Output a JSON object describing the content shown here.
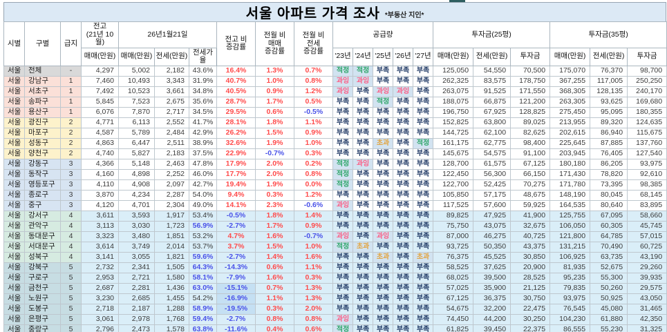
{
  "page": {
    "title": "서울 아파트 가격 조사",
    "subtitle": "*부동산 지인*"
  },
  "colors": {
    "title_bg": "#DCE9F5",
    "blue_row_bg": "#DAEEF8",
    "highlight_bg": "#D2E3F1",
    "positive_text": "#FF4B4B",
    "negative_text": "#4A52E8",
    "ratio_hot_text": "#4A52E8",
    "supply_lack": "#1F3864",
    "supply_ok": "#2FA66A",
    "supply_over": "#FB5E86",
    "supply_exceed": "#E2A33D",
    "tier1_bg": "#FBE0D8",
    "tier2_bg": "#FDF2CB",
    "tier3_bg": "#D7E4F2",
    "tier4_bg": "#D6EBE1",
    "tier5_bg": "#C7DDE3",
    "tier_all_bg": "#D9D9D9"
  },
  "header": {
    "sido": "시별",
    "gu": "구별",
    "tier": "급지",
    "prev_group": "전고\n(21년 10월)",
    "date_group": "26년1월21일",
    "sub_sale": "매매(만원)",
    "sub_jeonse": "전세(만원)",
    "sub_ratio": "전세가율",
    "sub_invest": "투자금",
    "chg_prev": "전고 비\n증감률",
    "chg_sale": "전월 비\n매매\n증감률",
    "chg_jeonse": "전월 비\n전세\n증감률",
    "supply_group": "공급량",
    "years": [
      "'23년",
      "'24년",
      "'25년",
      "'26년",
      "'27년"
    ],
    "inv25_group": "투자금(25평)",
    "inv35_group": "투자금(35평)"
  },
  "supply_labels": {
    "lack": "부족",
    "ok": "적정",
    "over": "과잉",
    "exceed": "초과"
  },
  "rows": [
    {
      "sido": "서울",
      "gu": "전체",
      "tier": "-",
      "group": "all",
      "blue": false,
      "prev_sale": "4,297",
      "sale": "5,002",
      "jeonse": "2,182",
      "ratio": "43.6%",
      "ratio_hot": false,
      "chg_prev": "16.4%",
      "chg_prev_hl": false,
      "chg_sale": "1.3%",
      "chg_jeonse": "0.7%",
      "supply": [
        "ok",
        "ok",
        "lack",
        "lack",
        "lack"
      ],
      "inv25": [
        "125,050",
        "54,550",
        "70,500"
      ],
      "inv35": [
        "175,070",
        "76,370",
        "98,700"
      ]
    },
    {
      "sido": "서울",
      "gu": "강남구",
      "tier": "1",
      "group": "t1",
      "blue": false,
      "prev_sale": "7,460",
      "sale": "10,493",
      "jeonse": "3,343",
      "ratio": "31.9%",
      "ratio_hot": false,
      "chg_prev": "40.7%",
      "chg_prev_hl": false,
      "chg_sale": "1.0%",
      "chg_jeonse": "0.8%",
      "supply": [
        "over",
        "over",
        "lack",
        "lack",
        "lack"
      ],
      "inv25": [
        "262,325",
        "83,575",
        "178,750"
      ],
      "inv35": [
        "367,255",
        "117,005",
        "250,250"
      ]
    },
    {
      "sido": "서울",
      "gu": "서초구",
      "tier": "1",
      "group": "t1",
      "blue": false,
      "prev_sale": "7,492",
      "sale": "10,523",
      "jeonse": "3,661",
      "ratio": "34.8%",
      "ratio_hot": false,
      "chg_prev": "40.5%",
      "chg_prev_hl": false,
      "chg_sale": "0.9%",
      "chg_jeonse": "1.2%",
      "supply": [
        "over",
        "lack",
        "over",
        "over",
        "lack"
      ],
      "inv25": [
        "263,075",
        "91,525",
        "171,550"
      ],
      "inv35": [
        "368,305",
        "128,135",
        "240,170"
      ]
    },
    {
      "sido": "서울",
      "gu": "송파구",
      "tier": "1",
      "group": "t1",
      "blue": false,
      "prev_sale": "5,845",
      "sale": "7,523",
      "jeonse": "2,675",
      "ratio": "35.6%",
      "ratio_hot": false,
      "chg_prev": "28.7%",
      "chg_prev_hl": false,
      "chg_sale": "1.7%",
      "chg_jeonse": "0.5%",
      "supply": [
        "lack",
        "lack",
        "ok",
        "lack",
        "lack"
      ],
      "inv25": [
        "188,075",
        "66,875",
        "121,200"
      ],
      "inv35": [
        "263,305",
        "93,625",
        "169,680"
      ]
    },
    {
      "sido": "서울",
      "gu": "용산구",
      "tier": "1",
      "group": "t1",
      "blue": false,
      "prev_sale": "6,076",
      "sale": "7,870",
      "jeonse": "2,717",
      "ratio": "34.5%",
      "ratio_hot": false,
      "chg_prev": "29.5%",
      "chg_prev_hl": false,
      "chg_sale": "0.6%",
      "chg_jeonse": "-0.5%",
      "supply": [
        "lack",
        "lack",
        "lack",
        "lack",
        "lack"
      ],
      "inv25": [
        "196,750",
        "67,925",
        "128,825"
      ],
      "inv35": [
        "275,450",
        "95,095",
        "180,355"
      ]
    },
    {
      "sido": "서울",
      "gu": "광진구",
      "tier": "2",
      "group": "t2",
      "blue": false,
      "prev_sale": "4,771",
      "sale": "6,113",
      "jeonse": "2,552",
      "ratio": "41.7%",
      "ratio_hot": false,
      "chg_prev": "28.1%",
      "chg_prev_hl": false,
      "chg_sale": "1.8%",
      "chg_jeonse": "1.1%",
      "supply": [
        "lack",
        "lack",
        "lack",
        "lack",
        "lack"
      ],
      "inv25": [
        "152,825",
        "63,800",
        "89,025"
      ],
      "inv35": [
        "213,955",
        "89,320",
        "124,635"
      ]
    },
    {
      "sido": "서울",
      "gu": "마포구",
      "tier": "2",
      "group": "t2",
      "blue": false,
      "prev_sale": "4,587",
      "sale": "5,789",
      "jeonse": "2,484",
      "ratio": "42.9%",
      "ratio_hot": false,
      "chg_prev": "26.2%",
      "chg_prev_hl": false,
      "chg_sale": "1.5%",
      "chg_jeonse": "0.9%",
      "supply": [
        "lack",
        "lack",
        "lack",
        "lack",
        "lack"
      ],
      "inv25": [
        "144,725",
        "62,100",
        "82,625"
      ],
      "inv35": [
        "202,615",
        "86,940",
        "115,675"
      ]
    },
    {
      "sido": "서울",
      "gu": "성동구",
      "tier": "2",
      "group": "t2",
      "blue": false,
      "prev_sale": "4,863",
      "sale": "6,447",
      "jeonse": "2,511",
      "ratio": "38.9%",
      "ratio_hot": false,
      "chg_prev": "32.6%",
      "chg_prev_hl": false,
      "chg_sale": "1.9%",
      "chg_jeonse": "1.0%",
      "supply": [
        "lack",
        "lack",
        "exceed",
        "lack",
        "ok"
      ],
      "inv25": [
        "161,175",
        "62,775",
        "98,400"
      ],
      "inv35": [
        "225,645",
        "87,885",
        "137,760"
      ]
    },
    {
      "sido": "서울",
      "gu": "양천구",
      "tier": "2",
      "group": "t2",
      "blue": false,
      "prev_sale": "4,740",
      "sale": "5,827",
      "jeonse": "2,183",
      "ratio": "37.5%",
      "ratio_hot": false,
      "chg_prev": "22.9%",
      "chg_prev_hl": false,
      "chg_sale": "-0.7%",
      "chg_jeonse": "0.3%",
      "supply": [
        "lack",
        "lack",
        "lack",
        "lack",
        "lack"
      ],
      "inv25": [
        "145,675",
        "54,575",
        "91,100"
      ],
      "inv35": [
        "203,945",
        "76,405",
        "127,540"
      ]
    },
    {
      "sido": "서울",
      "gu": "강동구",
      "tier": "3",
      "group": "t3",
      "blue": false,
      "prev_sale": "4,366",
      "sale": "5,148",
      "jeonse": "2,463",
      "ratio": "47.8%",
      "ratio_hot": false,
      "chg_prev": "17.9%",
      "chg_prev_hl": false,
      "chg_sale": "2.0%",
      "chg_jeonse": "0.2%",
      "supply": [
        "ok",
        "over",
        "lack",
        "lack",
        "lack"
      ],
      "inv25": [
        "128,700",
        "61,575",
        "67,125"
      ],
      "inv35": [
        "180,180",
        "86,205",
        "93,975"
      ]
    },
    {
      "sido": "서울",
      "gu": "동작구",
      "tier": "3",
      "group": "t3",
      "blue": false,
      "prev_sale": "4,160",
      "sale": "4,898",
      "jeonse": "2,252",
      "ratio": "46.0%",
      "ratio_hot": false,
      "chg_prev": "17.7%",
      "chg_prev_hl": false,
      "chg_sale": "2.0%",
      "chg_jeonse": "0.8%",
      "supply": [
        "ok",
        "lack",
        "lack",
        "lack",
        "lack"
      ],
      "inv25": [
        "122,450",
        "56,300",
        "66,150"
      ],
      "inv35": [
        "171,430",
        "78,820",
        "92,610"
      ]
    },
    {
      "sido": "서울",
      "gu": "영등포구",
      "tier": "3",
      "group": "t3",
      "blue": false,
      "prev_sale": "4,110",
      "sale": "4,908",
      "jeonse": "2,097",
      "ratio": "42.7%",
      "ratio_hot": false,
      "chg_prev": "19.4%",
      "chg_prev_hl": false,
      "chg_sale": "1.9%",
      "chg_jeonse": "0.0%",
      "supply": [
        "ok",
        "lack",
        "lack",
        "lack",
        "lack"
      ],
      "inv25": [
        "122,700",
        "52,425",
        "70,275"
      ],
      "inv35": [
        "171,780",
        "73,395",
        "98,385"
      ]
    },
    {
      "sido": "서울",
      "gu": "종로구",
      "tier": "3",
      "group": "t3",
      "blue": false,
      "prev_sale": "3,870",
      "sale": "4,234",
      "jeonse": "2,287",
      "ratio": "54.0%",
      "ratio_hot": false,
      "chg_prev": "9.4%",
      "chg_prev_hl": false,
      "chg_sale": "0.3%",
      "chg_jeonse": "1.2%",
      "supply": [
        "lack",
        "lack",
        "lack",
        "lack",
        "lack"
      ],
      "inv25": [
        "105,850",
        "57,175",
        "48,675"
      ],
      "inv35": [
        "148,190",
        "80,045",
        "68,145"
      ]
    },
    {
      "sido": "서울",
      "gu": "중구",
      "tier": "3",
      "group": "t3",
      "blue": false,
      "prev_sale": "4,120",
      "sale": "4,701",
      "jeonse": "2,304",
      "ratio": "49.0%",
      "ratio_hot": false,
      "chg_prev": "14.1%",
      "chg_prev_hl": false,
      "chg_sale": "2.3%",
      "chg_jeonse": "-0.6%",
      "supply": [
        "over",
        "lack",
        "lack",
        "lack",
        "lack"
      ],
      "inv25": [
        "117,525",
        "57,600",
        "59,925"
      ],
      "inv35": [
        "164,535",
        "80,640",
        "83,895"
      ]
    },
    {
      "sido": "서울",
      "gu": "강서구",
      "tier": "4",
      "group": "t4",
      "blue": true,
      "prev_sale": "3,611",
      "sale": "3,593",
      "jeonse": "1,917",
      "ratio": "53.4%",
      "ratio_hot": false,
      "chg_prev": "-0.5%",
      "chg_prev_hl": false,
      "chg_sale": "1.8%",
      "chg_jeonse": "1.4%",
      "supply": [
        "lack",
        "lack",
        "lack",
        "lack",
        "lack"
      ],
      "inv25": [
        "89,825",
        "47,925",
        "41,900"
      ],
      "inv35": [
        "125,755",
        "67,095",
        "58,660"
      ]
    },
    {
      "sido": "서울",
      "gu": "관악구",
      "tier": "4",
      "group": "t4",
      "blue": true,
      "prev_sale": "3,113",
      "sale": "3,030",
      "jeonse": "1,723",
      "ratio": "56.9%",
      "ratio_hot": true,
      "chg_prev": "-2.7%",
      "chg_prev_hl": false,
      "chg_sale": "1.7%",
      "chg_jeonse": "0.9%",
      "supply": [
        "lack",
        "lack",
        "lack",
        "lack",
        "lack"
      ],
      "inv25": [
        "75,750",
        "43,075",
        "32,675"
      ],
      "inv35": [
        "106,050",
        "60,305",
        "45,745"
      ]
    },
    {
      "sido": "서울",
      "gu": "동대문구",
      "tier": "4",
      "group": "t4",
      "blue": true,
      "prev_sale": "3,323",
      "sale": "3,480",
      "jeonse": "1,851",
      "ratio": "53.2%",
      "ratio_hot": false,
      "chg_prev": "4.7%",
      "chg_prev_hl": false,
      "chg_sale": "1.6%",
      "chg_jeonse": "-0.7%",
      "supply": [
        "over",
        "lack",
        "over",
        "lack",
        "lack"
      ],
      "inv25": [
        "87,000",
        "46,275",
        "40,725"
      ],
      "inv35": [
        "121,800",
        "64,785",
        "57,015"
      ]
    },
    {
      "sido": "서울",
      "gu": "서대문구",
      "tier": "4",
      "group": "t4",
      "blue": true,
      "prev_sale": "3,614",
      "sale": "3,749",
      "jeonse": "2,014",
      "ratio": "53.7%",
      "ratio_hot": false,
      "chg_prev": "3.7%",
      "chg_prev_hl": false,
      "chg_sale": "1.5%",
      "chg_jeonse": "1.0%",
      "supply": [
        "ok",
        "exceed",
        "lack",
        "lack",
        "lack"
      ],
      "inv25": [
        "93,725",
        "50,350",
        "43,375"
      ],
      "inv35": [
        "131,215",
        "70,490",
        "60,725"
      ]
    },
    {
      "sido": "서울",
      "gu": "성북구",
      "tier": "4",
      "group": "t4",
      "blue": true,
      "prev_sale": "3,141",
      "sale": "3,055",
      "jeonse": "1,821",
      "ratio": "59.6%",
      "ratio_hot": true,
      "chg_prev": "-2.7%",
      "chg_prev_hl": false,
      "chg_sale": "1.4%",
      "chg_jeonse": "1.6%",
      "supply": [
        "lack",
        "lack",
        "exceed",
        "lack",
        "exceed"
      ],
      "inv25": [
        "76,375",
        "45,525",
        "30,850"
      ],
      "inv35": [
        "106,925",
        "63,735",
        "43,190"
      ]
    },
    {
      "sido": "서울",
      "gu": "강북구",
      "tier": "5",
      "group": "t5",
      "blue": true,
      "prev_sale": "2,732",
      "sale": "2,341",
      "jeonse": "1,505",
      "ratio": "64.3%",
      "ratio_hot": true,
      "chg_prev": "-14.3%",
      "chg_prev_hl": false,
      "chg_sale": "0.6%",
      "chg_jeonse": "1.1%",
      "supply": [
        "lack",
        "lack",
        "lack",
        "lack",
        "lack"
      ],
      "inv25": [
        "58,525",
        "37,625",
        "20,900"
      ],
      "inv35": [
        "81,935",
        "52,675",
        "29,260"
      ]
    },
    {
      "sido": "서울",
      "gu": "구로구",
      "tier": "5",
      "group": "t5",
      "blue": true,
      "prev_sale": "2,953",
      "sale": "2,721",
      "jeonse": "1,580",
      "ratio": "58.1%",
      "ratio_hot": true,
      "chg_prev": "-7.9%",
      "chg_prev_hl": false,
      "chg_sale": "1.6%",
      "chg_jeonse": "0.3%",
      "supply": [
        "lack",
        "lack",
        "lack",
        "lack",
        "lack"
      ],
      "inv25": [
        "68,025",
        "39,500",
        "28,525"
      ],
      "inv35": [
        "95,235",
        "55,300",
        "39,935"
      ]
    },
    {
      "sido": "서울",
      "gu": "금천구",
      "tier": "5",
      "group": "t5",
      "blue": true,
      "prev_sale": "2,687",
      "sale": "2,281",
      "jeonse": "1,436",
      "ratio": "63.0%",
      "ratio_hot": true,
      "chg_prev": "-15.1%",
      "chg_prev_hl": true,
      "chg_sale": "0.7%",
      "chg_jeonse": "1.3%",
      "supply": [
        "lack",
        "lack",
        "lack",
        "lack",
        "lack"
      ],
      "inv25": [
        "57,025",
        "35,900",
        "21,125"
      ],
      "inv35": [
        "79,835",
        "50,260",
        "29,575"
      ]
    },
    {
      "sido": "서울",
      "gu": "노원구",
      "tier": "5",
      "group": "t5",
      "blue": true,
      "prev_sale": "3,230",
      "sale": "2,685",
      "jeonse": "1,455",
      "ratio": "54.2%",
      "ratio_hot": false,
      "chg_prev": "-16.9%",
      "chg_prev_hl": true,
      "chg_sale": "1.1%",
      "chg_jeonse": "1.3%",
      "supply": [
        "lack",
        "lack",
        "lack",
        "lack",
        "lack"
      ],
      "inv25": [
        "67,125",
        "36,375",
        "30,750"
      ],
      "inv35": [
        "93,975",
        "50,925",
        "43,050"
      ]
    },
    {
      "sido": "서울",
      "gu": "도봉구",
      "tier": "5",
      "group": "t5",
      "blue": true,
      "prev_sale": "2,718",
      "sale": "2,187",
      "jeonse": "1,288",
      "ratio": "58.9%",
      "ratio_hot": true,
      "chg_prev": "-19.5%",
      "chg_prev_hl": true,
      "chg_sale": "0.3%",
      "chg_jeonse": "2.0%",
      "supply": [
        "lack",
        "lack",
        "lack",
        "lack",
        "lack"
      ],
      "inv25": [
        "54,675",
        "32,200",
        "22,475"
      ],
      "inv35": [
        "76,545",
        "45,080",
        "31,465"
      ]
    },
    {
      "sido": "서울",
      "gu": "은평구",
      "tier": "5",
      "group": "t5",
      "blue": true,
      "prev_sale": "3,061",
      "sale": "2,978",
      "jeonse": "1,768",
      "ratio": "59.4%",
      "ratio_hot": true,
      "chg_prev": "-2.7%",
      "chg_prev_hl": false,
      "chg_sale": "0.8%",
      "chg_jeonse": "0.8%",
      "supply": [
        "over",
        "lack",
        "lack",
        "lack",
        "lack"
      ],
      "inv25": [
        "74,450",
        "44,200",
        "30,250"
      ],
      "inv35": [
        "104,230",
        "61,880",
        "42,350"
      ]
    },
    {
      "sido": "서울",
      "gu": "중랑구",
      "tier": "5",
      "group": "t5",
      "blue": true,
      "prev_sale": "2,796",
      "sale": "2,473",
      "jeonse": "1,578",
      "ratio": "63.8%",
      "ratio_hot": true,
      "chg_prev": "-11.6%",
      "chg_prev_hl": false,
      "chg_sale": "0.4%",
      "chg_jeonse": "0.6%",
      "supply": [
        "ok",
        "lack",
        "lack",
        "lack",
        "lack"
      ],
      "inv25": [
        "61,825",
        "39,450",
        "22,375"
      ],
      "inv35": [
        "86,555",
        "55,230",
        "31,325"
      ]
    }
  ]
}
